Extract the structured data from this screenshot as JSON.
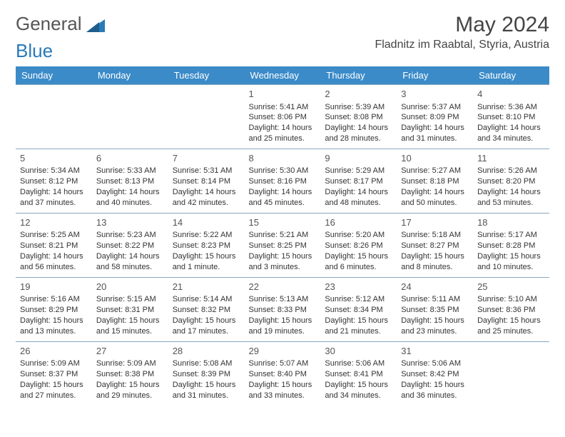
{
  "logo": {
    "text1": "General",
    "text2": "Blue"
  },
  "title": "May 2024",
  "location": "Fladnitz im Raabtal, Styria, Austria",
  "colors": {
    "header_bg": "#3b8bc8",
    "header_text": "#ffffff",
    "border": "#8aa8bf",
    "logo_gray": "#555",
    "logo_blue": "#2a7ab8"
  },
  "dayNames": [
    "Sunday",
    "Monday",
    "Tuesday",
    "Wednesday",
    "Thursday",
    "Friday",
    "Saturday"
  ],
  "weeks": [
    [
      null,
      null,
      null,
      {
        "d": "1",
        "sr": "5:41 AM",
        "ss": "8:06 PM",
        "dl": "14 hours and 25 minutes."
      },
      {
        "d": "2",
        "sr": "5:39 AM",
        "ss": "8:08 PM",
        "dl": "14 hours and 28 minutes."
      },
      {
        "d": "3",
        "sr": "5:37 AM",
        "ss": "8:09 PM",
        "dl": "14 hours and 31 minutes."
      },
      {
        "d": "4",
        "sr": "5:36 AM",
        "ss": "8:10 PM",
        "dl": "14 hours and 34 minutes."
      }
    ],
    [
      {
        "d": "5",
        "sr": "5:34 AM",
        "ss": "8:12 PM",
        "dl": "14 hours and 37 minutes."
      },
      {
        "d": "6",
        "sr": "5:33 AM",
        "ss": "8:13 PM",
        "dl": "14 hours and 40 minutes."
      },
      {
        "d": "7",
        "sr": "5:31 AM",
        "ss": "8:14 PM",
        "dl": "14 hours and 42 minutes."
      },
      {
        "d": "8",
        "sr": "5:30 AM",
        "ss": "8:16 PM",
        "dl": "14 hours and 45 minutes."
      },
      {
        "d": "9",
        "sr": "5:29 AM",
        "ss": "8:17 PM",
        "dl": "14 hours and 48 minutes."
      },
      {
        "d": "10",
        "sr": "5:27 AM",
        "ss": "8:18 PM",
        "dl": "14 hours and 50 minutes."
      },
      {
        "d": "11",
        "sr": "5:26 AM",
        "ss": "8:20 PM",
        "dl": "14 hours and 53 minutes."
      }
    ],
    [
      {
        "d": "12",
        "sr": "5:25 AM",
        "ss": "8:21 PM",
        "dl": "14 hours and 56 minutes."
      },
      {
        "d": "13",
        "sr": "5:23 AM",
        "ss": "8:22 PM",
        "dl": "14 hours and 58 minutes."
      },
      {
        "d": "14",
        "sr": "5:22 AM",
        "ss": "8:23 PM",
        "dl": "15 hours and 1 minute."
      },
      {
        "d": "15",
        "sr": "5:21 AM",
        "ss": "8:25 PM",
        "dl": "15 hours and 3 minutes."
      },
      {
        "d": "16",
        "sr": "5:20 AM",
        "ss": "8:26 PM",
        "dl": "15 hours and 6 minutes."
      },
      {
        "d": "17",
        "sr": "5:18 AM",
        "ss": "8:27 PM",
        "dl": "15 hours and 8 minutes."
      },
      {
        "d": "18",
        "sr": "5:17 AM",
        "ss": "8:28 PM",
        "dl": "15 hours and 10 minutes."
      }
    ],
    [
      {
        "d": "19",
        "sr": "5:16 AM",
        "ss": "8:29 PM",
        "dl": "15 hours and 13 minutes."
      },
      {
        "d": "20",
        "sr": "5:15 AM",
        "ss": "8:31 PM",
        "dl": "15 hours and 15 minutes."
      },
      {
        "d": "21",
        "sr": "5:14 AM",
        "ss": "8:32 PM",
        "dl": "15 hours and 17 minutes."
      },
      {
        "d": "22",
        "sr": "5:13 AM",
        "ss": "8:33 PM",
        "dl": "15 hours and 19 minutes."
      },
      {
        "d": "23",
        "sr": "5:12 AM",
        "ss": "8:34 PM",
        "dl": "15 hours and 21 minutes."
      },
      {
        "d": "24",
        "sr": "5:11 AM",
        "ss": "8:35 PM",
        "dl": "15 hours and 23 minutes."
      },
      {
        "d": "25",
        "sr": "5:10 AM",
        "ss": "8:36 PM",
        "dl": "15 hours and 25 minutes."
      }
    ],
    [
      {
        "d": "26",
        "sr": "5:09 AM",
        "ss": "8:37 PM",
        "dl": "15 hours and 27 minutes."
      },
      {
        "d": "27",
        "sr": "5:09 AM",
        "ss": "8:38 PM",
        "dl": "15 hours and 29 minutes."
      },
      {
        "d": "28",
        "sr": "5:08 AM",
        "ss": "8:39 PM",
        "dl": "15 hours and 31 minutes."
      },
      {
        "d": "29",
        "sr": "5:07 AM",
        "ss": "8:40 PM",
        "dl": "15 hours and 33 minutes."
      },
      {
        "d": "30",
        "sr": "5:06 AM",
        "ss": "8:41 PM",
        "dl": "15 hours and 34 minutes."
      },
      {
        "d": "31",
        "sr": "5:06 AM",
        "ss": "8:42 PM",
        "dl": "15 hours and 36 minutes."
      },
      null
    ]
  ],
  "labels": {
    "sunrise": "Sunrise:",
    "sunset": "Sunset:",
    "daylight": "Daylight:"
  }
}
